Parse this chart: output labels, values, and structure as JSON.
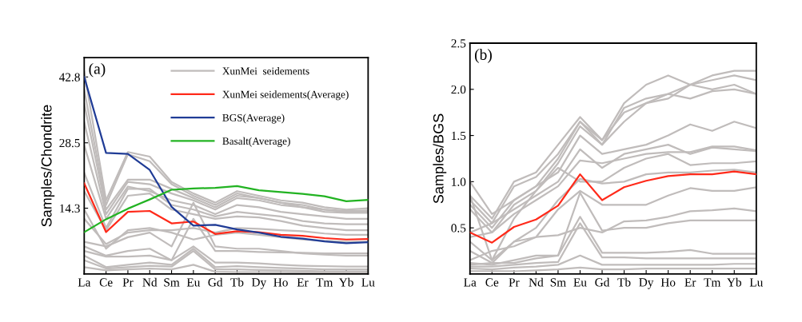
{
  "chart_data": [
    {
      "type": "line",
      "ylabel": "Samples/Chondrite",
      "annotations": [
        "(a)"
      ],
      "legend": "top",
      "grid": false,
      "marker": "none",
      "line_style": "solid",
      "categories": [
        "La",
        "Ce",
        "Pr",
        "Nd",
        "Sm",
        "Eu",
        "Gd",
        "Tb",
        "Dy",
        "Ho",
        "Er",
        "Tm",
        "Yb",
        "Lu"
      ],
      "ylim": [
        0,
        47
      ],
      "yticks": [
        14.3,
        28.5,
        42.8
      ],
      "series": [
        {
          "name": "XunMei  seidements",
          "color": "#c0bcbb",
          "values": [
            44,
            16,
            26.5,
            25.5,
            20,
            17.5,
            15.5,
            18,
            17,
            16,
            15.5,
            14.5,
            14,
            14.3
          ]
        },
        {
          "color": "#c0bcbb",
          "values": [
            40,
            15,
            26,
            24.5,
            19.5,
            17,
            15,
            17.5,
            16.5,
            15.5,
            15,
            14,
            13.7,
            13.8
          ]
        },
        {
          "color": "#c0bcbb",
          "values": [
            37,
            14,
            20.5,
            20.5,
            18.5,
            16.5,
            14.5,
            17,
            16.5,
            15.5,
            14.5,
            14,
            13.5,
            13.5
          ]
        },
        {
          "color": "#c0bcbb",
          "values": [
            33,
            13,
            20,
            19.5,
            17.5,
            16,
            14,
            16.5,
            16,
            15,
            14.5,
            13.5,
            13.3,
            13.3
          ]
        },
        {
          "color": "#c0bcbb",
          "values": [
            28,
            12,
            19,
            18,
            16,
            15,
            13,
            15,
            14.5,
            13.5,
            13,
            12.5,
            12,
            12
          ]
        },
        {
          "color": "#c0bcbb",
          "values": [
            22,
            10,
            18.5,
            18.5,
            15,
            14,
            12.5,
            13.5,
            13,
            12.5,
            11.5,
            11,
            10.8,
            10.8
          ]
        },
        {
          "color": "#c0bcbb",
          "values": [
            18,
            9.5,
            17,
            17.5,
            14,
            13,
            12,
            12.5,
            12.3,
            11.5,
            10.5,
            10,
            9.5,
            9.5
          ]
        },
        {
          "color": "#c0bcbb",
          "values": [
            14,
            5.5,
            9.5,
            10,
            9,
            7.5,
            8.5,
            9,
            8.5,
            8,
            7.5,
            7.2,
            7,
            7
          ]
        },
        {
          "color": "#c0bcbb",
          "values": [
            12,
            6.5,
            9,
            9.5,
            9.5,
            10,
            9,
            10,
            9.8,
            9.5,
            9.3,
            8.8,
            8.5,
            8.5
          ]
        },
        {
          "color": "#c0bcbb",
          "values": [
            7,
            6,
            8,
            9,
            6,
            15.5,
            6,
            5.5,
            5.5,
            5,
            4.5,
            4.2,
            4,
            4
          ]
        },
        {
          "color": "#c0bcbb",
          "values": [
            6,
            4,
            5,
            5.5,
            3,
            12,
            5,
            5,
            4.8,
            4.7,
            4.6,
            4.5,
            4.5,
            4.5
          ]
        },
        {
          "color": "#c0bcbb",
          "values": [
            5,
            3.8,
            3.8,
            4,
            3,
            6,
            2.5,
            2.5,
            2.3,
            2,
            1.8,
            1.7,
            1.6,
            1.6
          ]
        },
        {
          "color": "#c0bcbb",
          "values": [
            4,
            1.5,
            2,
            2.5,
            2,
            5.5,
            1.5,
            1.7,
            1.5,
            1.3,
            1.2,
            1,
            1,
            1
          ]
        },
        {
          "color": "#c0bcbb",
          "values": [
            3,
            1.2,
            1.5,
            1.8,
            1.6,
            5,
            1,
            1,
            0.9,
            0.8,
            0.7,
            0.6,
            0.6,
            0.6
          ]
        },
        {
          "color": "#c0bcbb",
          "values": [
            1.5,
            0.8,
            1,
            1.2,
            1,
            2,
            0.5,
            0.4,
            0.4,
            0.4,
            0.3,
            0.3,
            0.3,
            0.3
          ]
        },
        {
          "name": "XunMei seidements(Average)",
          "color": "#ff2a1a",
          "values": [
            19.7,
            9.1,
            13.5,
            13.7,
            11.0,
            11.4,
            8.7,
            9.3,
            9.1,
            8.5,
            8.3,
            7.8,
            7.5,
            7.6
          ]
        },
        {
          "name": "BGS(Average)",
          "color": "#203c96",
          "values": [
            42.8,
            26.3,
            26.1,
            22.6,
            14.6,
            10.5,
            10.7,
            9.7,
            9.0,
            8.1,
            7.7,
            7.1,
            6.7,
            6.9
          ]
        },
        {
          "name": "Basalt(Average)",
          "color": "#22b322",
          "values": [
            9.1,
            11.9,
            14.2,
            16.2,
            18.3,
            18.6,
            18.7,
            19.1,
            18.2,
            17.8,
            17.4,
            16.9,
            15.8,
            16.1
          ]
        }
      ]
    },
    {
      "type": "line",
      "ylabel": "Samples/BGS",
      "annotations": [
        "(b)"
      ],
      "grid": false,
      "marker": "none",
      "line_style": "solid",
      "categories": [
        "La",
        "Ce",
        "Pr",
        "Nd",
        "Sm",
        "Eu",
        "Gd",
        "Tb",
        "Dy",
        "Ho",
        "Er",
        "Tm",
        "Yb",
        "Lu"
      ],
      "ylim": [
        0,
        2.5
      ],
      "yticks": [
        0.5,
        {
          "value": 1,
          "label": "1.0"
        },
        1.5,
        {
          "value": 2,
          "label": "2.0"
        },
        2.5
      ],
      "series": [
        {
          "color": "#c0bcbb",
          "values": [
            0.85,
            0.6,
            1.0,
            1.1,
            1.4,
            1.7,
            1.45,
            1.85,
            2.05,
            2.15,
            2.05,
            2.15,
            2.2,
            2.2
          ]
        },
        {
          "color": "#c0bcbb",
          "values": [
            0.8,
            0.55,
            0.95,
            1.05,
            1.3,
            1.65,
            1.4,
            1.8,
            1.9,
            1.95,
            2.05,
            2.0,
            2.05,
            1.95
          ]
        },
        {
          "color": "#c0bcbb",
          "values": [
            0.75,
            0.5,
            0.8,
            0.95,
            1.25,
            1.65,
            1.45,
            1.75,
            1.85,
            1.9,
            2.05,
            2.1,
            2.15,
            2.1
          ]
        },
        {
          "color": "#c0bcbb",
          "values": [
            0.7,
            0.45,
            0.75,
            0.9,
            1.2,
            1.6,
            1.4,
            1.65,
            1.85,
            1.95,
            1.9,
            1.98,
            2.0,
            1.95
          ]
        },
        {
          "color": "#c0bcbb",
          "values": [
            1.0,
            0.65,
            0.8,
            0.95,
            1.1,
            1.5,
            1.3,
            1.35,
            1.4,
            1.5,
            1.62,
            1.55,
            1.65,
            1.58
          ]
        },
        {
          "color": "#c0bcbb",
          "values": [
            0.45,
            0.55,
            0.7,
            0.85,
            1.0,
            1.35,
            1.15,
            1.3,
            1.35,
            1.4,
            1.3,
            1.37,
            1.35,
            1.33
          ]
        },
        {
          "color": "#c0bcbb",
          "values": [
            0.4,
            0.45,
            0.65,
            0.8,
            0.95,
            1.23,
            1.2,
            1.25,
            1.3,
            1.32,
            1.32,
            1.38,
            1.38,
            1.34
          ]
        },
        {
          "color": "#c0bcbb",
          "values": [
            0.35,
            0.15,
            0.6,
            0.9,
            1.15,
            1.0,
            1.0,
            1.15,
            1.25,
            1.3,
            1.18,
            1.2,
            1.2,
            1.22
          ]
        },
        {
          "color": "#c0bcbb",
          "values": [
            0.85,
            0.15,
            0.35,
            0.5,
            0.8,
            1.03,
            0.98,
            1.0,
            1.08,
            1.1,
            1.1,
            1.12,
            1.13,
            1.1
          ]
        },
        {
          "color": "#c0bcbb",
          "values": [
            0.25,
            0.12,
            0.35,
            0.4,
            0.7,
            0.9,
            0.75,
            0.75,
            0.75,
            0.85,
            0.93,
            0.9,
            0.9,
            0.94
          ]
        },
        {
          "color": "#c0bcbb",
          "values": [
            0.15,
            0.25,
            0.3,
            0.4,
            0.42,
            0.5,
            0.45,
            0.57,
            0.58,
            0.62,
            0.68,
            0.69,
            0.71,
            0.68
          ]
        },
        {
          "color": "#c0bcbb",
          "values": [
            0.12,
            0.1,
            0.15,
            0.2,
            0.2,
            0.88,
            0.47,
            0.5,
            0.5,
            0.55,
            0.58,
            0.58,
            0.58,
            0.58
          ]
        },
        {
          "color": "#c0bcbb",
          "values": [
            0.1,
            0.12,
            0.12,
            0.17,
            0.2,
            0.62,
            0.23,
            0.23,
            0.23,
            0.24,
            0.26,
            0.22,
            0.22,
            0.22
          ]
        },
        {
          "color": "#c0bcbb",
          "values": [
            0.08,
            0.08,
            0.1,
            0.12,
            0.13,
            0.55,
            0.18,
            0.18,
            0.17,
            0.17,
            0.17,
            0.17,
            0.17,
            0.17
          ]
        },
        {
          "color": "#c0bcbb",
          "values": [
            0.06,
            0.05,
            0.07,
            0.08,
            0.1,
            0.2,
            0.1,
            0.1,
            0.1,
            0.1,
            0.1,
            0.1,
            0.11,
            0.11
          ]
        },
        {
          "color": "#c0bcbb",
          "values": [
            0.03,
            0.03,
            0.03,
            0.04,
            0.05,
            0.07,
            0.05,
            0.05,
            0.06,
            0.06,
            0.06,
            0.06,
            0.06,
            0.06
          ]
        },
        {
          "color": "#ff2a1a",
          "values": [
            0.45,
            0.34,
            0.51,
            0.59,
            0.74,
            1.08,
            0.8,
            0.94,
            1.01,
            1.06,
            1.08,
            1.08,
            1.11,
            1.08
          ]
        }
      ]
    }
  ]
}
